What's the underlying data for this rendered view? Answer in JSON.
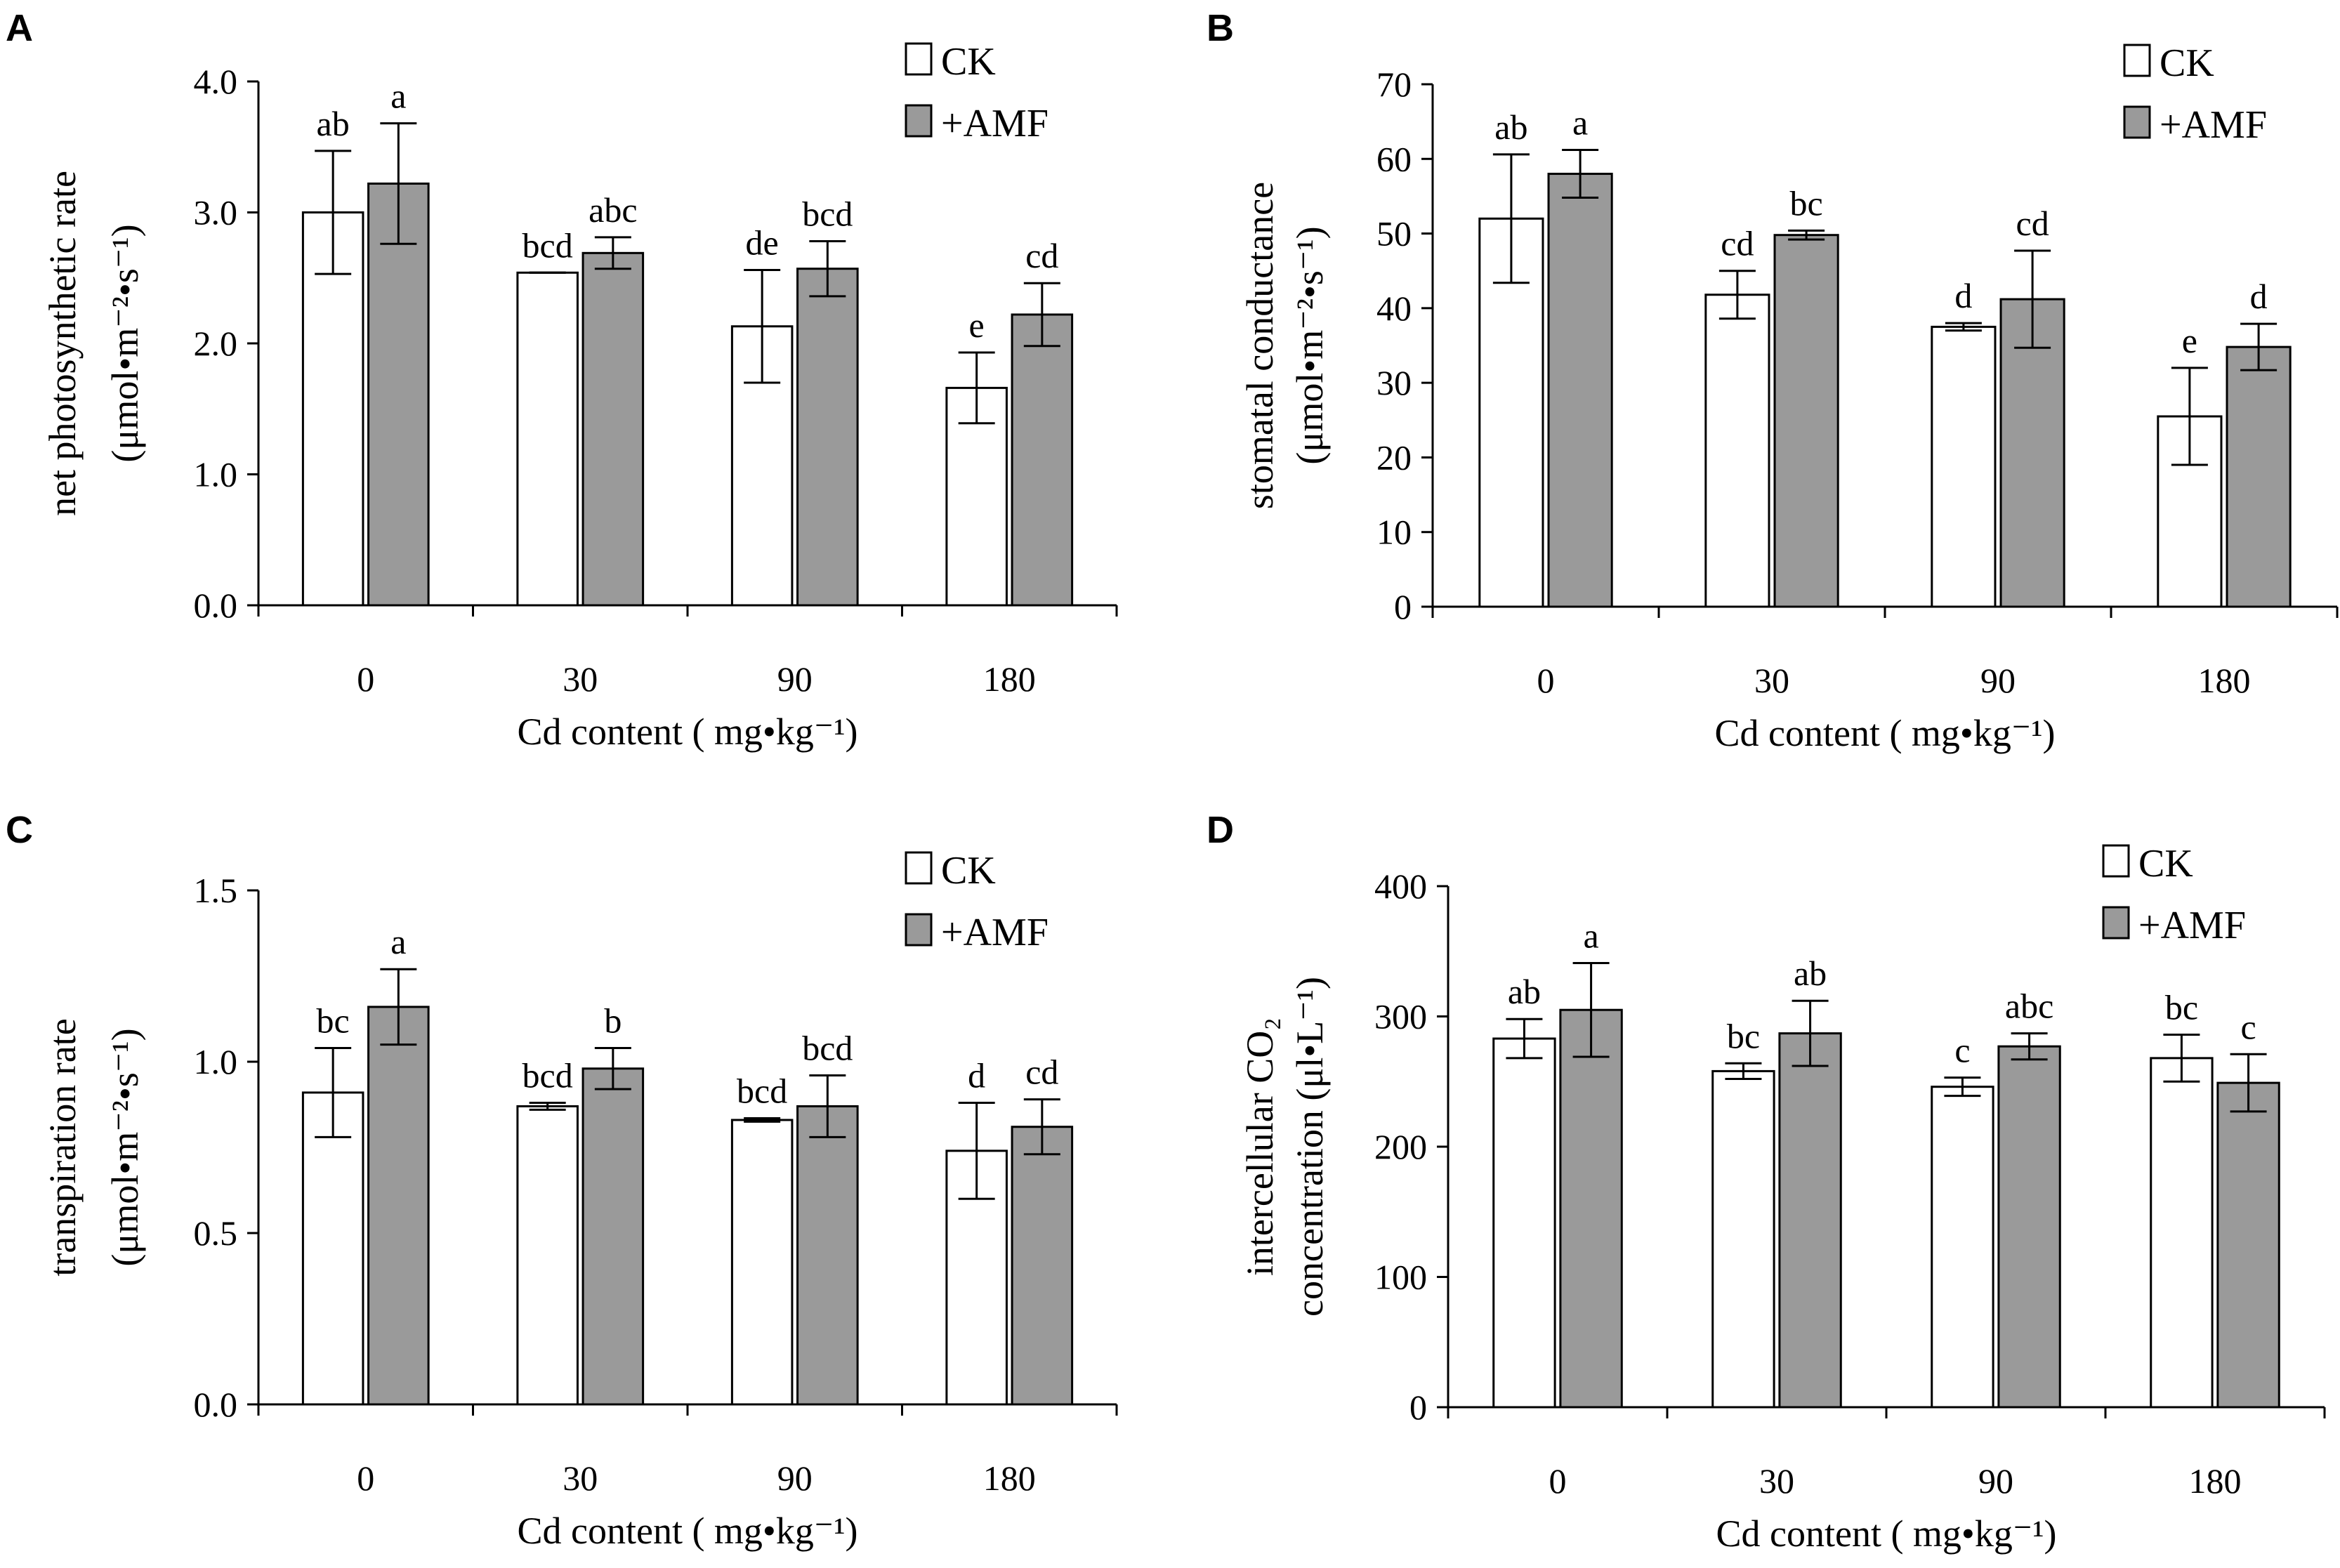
{
  "colors": {
    "ck_fill": "#ffffff",
    "amf_fill": "#9a9a9a",
    "stroke": "#000000"
  },
  "legend": {
    "ck": "CK",
    "amf": "+AMF"
  },
  "chart_data": [
    {
      "panel": "A",
      "type": "bar",
      "categories": [
        "0",
        "30",
        "90",
        "180"
      ],
      "xlabel": "Cd content ( mg•kg⁻¹)",
      "ylabel_line1": "net photosynthetic rate",
      "ylabel_line2": "(μmol•m⁻²•s⁻¹)",
      "ylim": [
        0,
        4.0
      ],
      "yticks": [
        "0.0",
        "1.0",
        "2.0",
        "3.0",
        "4.0"
      ],
      "series": [
        {
          "name": "CK",
          "values": [
            3.0,
            2.54,
            2.13,
            1.66
          ],
          "errors": [
            0.47,
            0.0,
            0.43,
            0.27
          ],
          "labels": [
            "ab",
            "bcd",
            "de",
            "e"
          ]
        },
        {
          "name": "+AMF",
          "values": [
            3.22,
            2.69,
            2.57,
            2.22
          ],
          "errors": [
            0.46,
            0.12,
            0.21,
            0.24
          ],
          "labels": [
            "a",
            "abc",
            "bcd",
            "cd"
          ]
        }
      ]
    },
    {
      "panel": "B",
      "type": "bar",
      "categories": [
        "0",
        "30",
        "90",
        "180"
      ],
      "xlabel": "Cd content ( mg•kg⁻¹)",
      "ylabel_line1": "stomatal conductance",
      "ylabel_line2": "(μmol•m⁻²•s⁻¹)",
      "ylim": [
        0,
        70
      ],
      "yticks": [
        "0",
        "10",
        "20",
        "30",
        "40",
        "50",
        "60",
        "70"
      ],
      "series": [
        {
          "name": "CK",
          "values": [
            52.0,
            41.8,
            37.5,
            25.5
          ],
          "errors": [
            8.6,
            3.2,
            0.5,
            6.5
          ],
          "labels": [
            "ab",
            "cd",
            "d",
            "e"
          ]
        },
        {
          "name": "+AMF",
          "values": [
            58.0,
            49.8,
            41.2,
            34.8
          ],
          "errors": [
            3.2,
            0.6,
            6.5,
            3.1
          ],
          "labels": [
            "a",
            "bc",
            "cd",
            "d"
          ]
        }
      ]
    },
    {
      "panel": "C",
      "type": "bar",
      "categories": [
        "0",
        "30",
        "90",
        "180"
      ],
      "xlabel": "Cd content ( mg•kg⁻¹)",
      "ylabel_line1": "transpiration rate",
      "ylabel_line2": "(μmol•m⁻²•s⁻¹)",
      "ylim": [
        0,
        1.5
      ],
      "yticks": [
        "0.0",
        "0.5",
        "1.0",
        "1.5"
      ],
      "series": [
        {
          "name": "CK",
          "values": [
            0.91,
            0.87,
            0.83,
            0.74
          ],
          "errors": [
            0.13,
            0.01,
            0.005,
            0.14
          ],
          "labels": [
            "bc",
            "bcd",
            "bcd",
            "d"
          ]
        },
        {
          "name": "+AMF",
          "values": [
            1.16,
            0.98,
            0.87,
            0.81
          ],
          "errors": [
            0.11,
            0.06,
            0.09,
            0.08
          ],
          "labels": [
            "a",
            "b",
            "bcd",
            "cd"
          ]
        }
      ]
    },
    {
      "panel": "D",
      "type": "bar",
      "categories": [
        "0",
        "30",
        "90",
        "180"
      ],
      "xlabel": "Cd content ( mg•kg⁻¹)",
      "ylabel_line1": "intercellular CO₂",
      "ylabel_line2": "concentration (μl•L⁻¹)",
      "ylim": [
        0,
        400
      ],
      "yticks": [
        "0",
        "100",
        "200",
        "300",
        "400"
      ],
      "series": [
        {
          "name": "CK",
          "values": [
            283,
            258,
            246,
            268
          ],
          "errors": [
            15,
            6,
            7,
            18
          ],
          "labels": [
            "ab",
            "bc",
            "c",
            "bc"
          ]
        },
        {
          "name": "+AMF",
          "values": [
            305,
            287,
            277,
            249
          ],
          "errors": [
            36,
            25,
            10,
            22
          ],
          "labels": [
            "a",
            "ab",
            "abc",
            "c"
          ]
        }
      ]
    }
  ]
}
